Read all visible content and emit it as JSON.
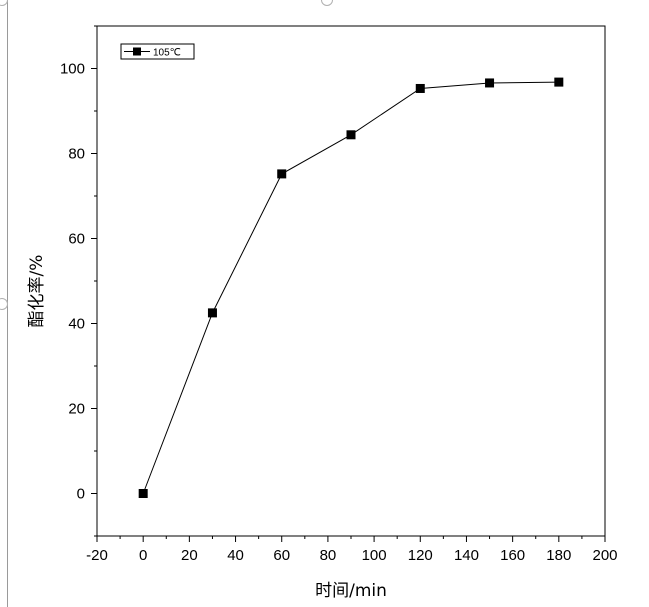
{
  "chart_data": {
    "type": "line",
    "title": "",
    "xlabel": "时间/min",
    "ylabel": "酯化率/%",
    "xlim": [
      -20,
      200
    ],
    "ylim": [
      -10,
      110
    ],
    "x_ticks": [
      "-20",
      "0",
      "20",
      "40",
      "60",
      "80",
      "100",
      "120",
      "140",
      "160",
      "180",
      "200"
    ],
    "y_ticks": [
      "0",
      "20",
      "40",
      "60",
      "80",
      "100"
    ],
    "grid": false,
    "legend_position": "top-left",
    "series": [
      {
        "name": "105℃",
        "color": "#000000",
        "marker": "square",
        "x": [
          0,
          30,
          60,
          90,
          120,
          150,
          180
        ],
        "y": [
          0,
          42.5,
          75.2,
          84.4,
          95.3,
          96.6,
          96.8
        ]
      }
    ]
  }
}
